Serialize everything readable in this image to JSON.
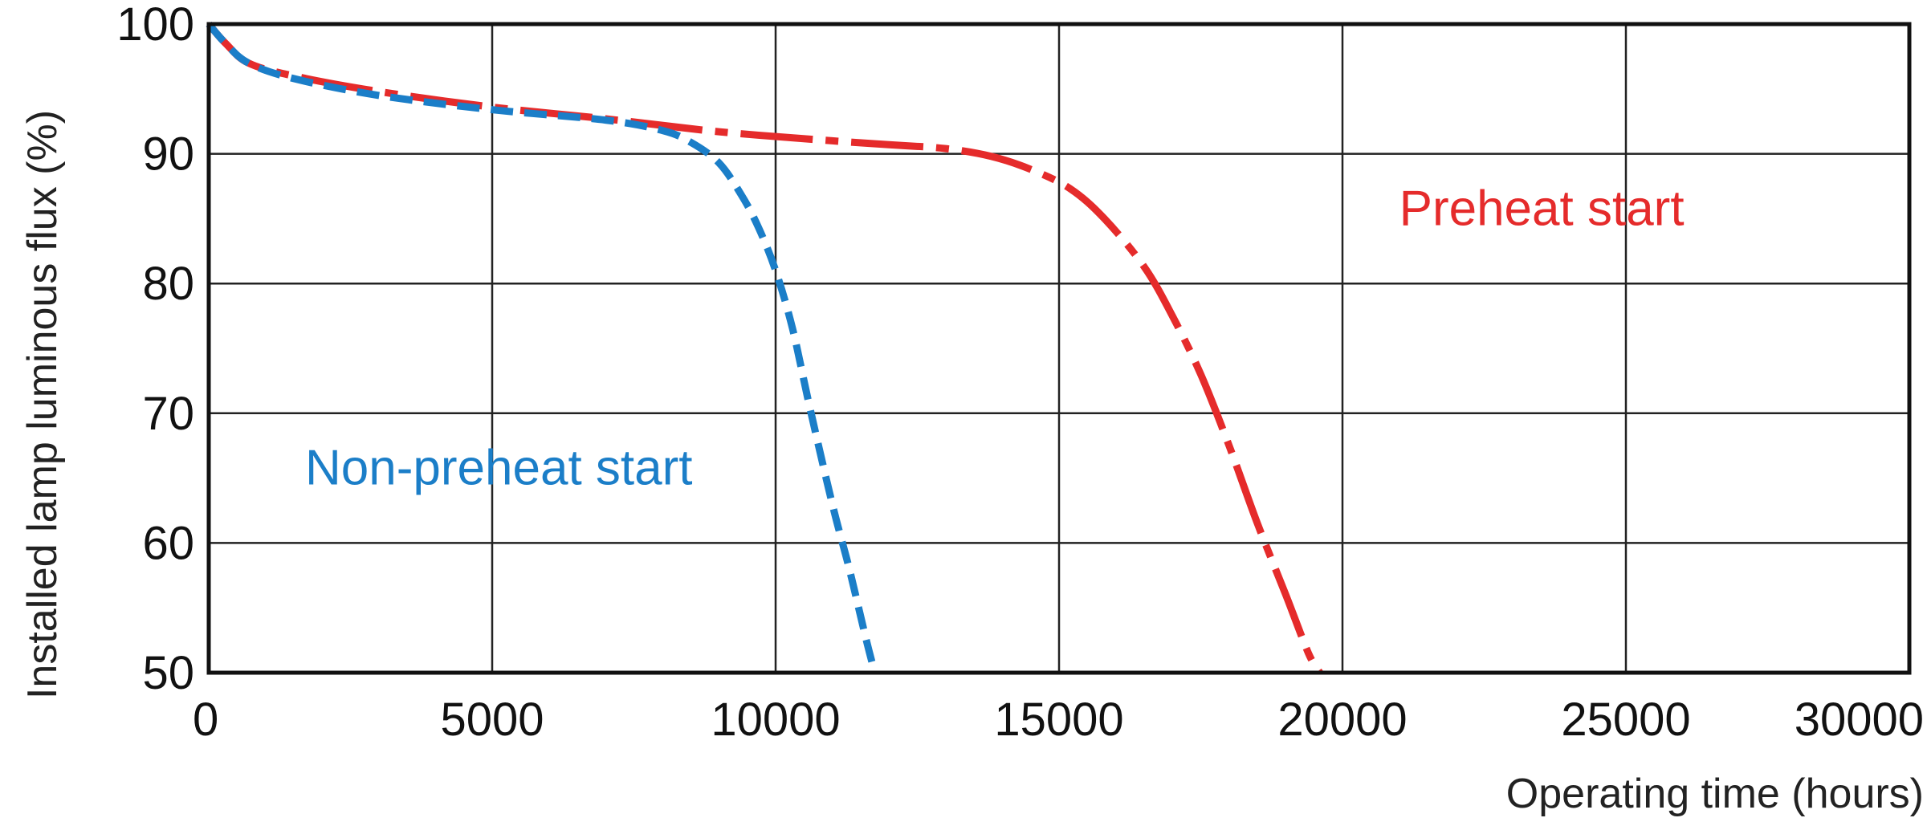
{
  "chart_data": {
    "type": "line",
    "xlabel": "Operating time (hours)",
    "ylabel": "Installed lamp luminous flux (%)",
    "xlim": [
      0,
      30000
    ],
    "ylim": [
      50,
      100
    ],
    "xticks": [
      0,
      5000,
      10000,
      15000,
      20000,
      25000,
      30000
    ],
    "yticks": [
      50,
      60,
      70,
      80,
      90,
      100
    ],
    "xtick_labels": [
      "0",
      "5000",
      "10000",
      "15000",
      "20000",
      "25000",
      "30000"
    ],
    "ytick_labels": [
      "50",
      "60",
      "70",
      "80",
      "90",
      "100"
    ],
    "grid": true,
    "series": [
      {
        "name": "Preheat start",
        "color": "#e52b2b",
        "dash": "long-dash-dot",
        "x": [
          0,
          300,
          700,
          1500,
          3000,
          5000,
          7000,
          9000,
          11000,
          12000,
          13000,
          13800,
          14500,
          15200,
          15800,
          16500,
          17000,
          17500,
          18000,
          18500,
          19000,
          19400,
          19600
        ],
        "y": [
          100,
          98.5,
          97,
          96,
          94.8,
          93.6,
          92.7,
          91.7,
          91.0,
          90.7,
          90.4,
          89.8,
          88.8,
          87.3,
          85.0,
          81.3,
          77.5,
          73.0,
          67.5,
          61.5,
          56.0,
          51.5,
          50
        ]
      },
      {
        "name": "Non-preheat start",
        "color": "#1b7ec8",
        "dash": "short-dash",
        "x": [
          0,
          300,
          700,
          1500,
          3000,
          5000,
          7000,
          8000,
          8500,
          9000,
          9400,
          9700,
          10000,
          10300,
          10600,
          11000,
          11300,
          11600,
          11750
        ],
        "y": [
          100,
          98.5,
          97,
          95.8,
          94.5,
          93.4,
          92.6,
          91.8,
          90.9,
          89.3,
          86.8,
          84.3,
          81.0,
          76.5,
          70.5,
          63.0,
          58.0,
          52.5,
          50
        ]
      }
    ],
    "annotations": [
      {
        "text": "Preheat start",
        "series": "Preheat start",
        "x": 21000,
        "y": 84.5
      },
      {
        "text": "Non-preheat start",
        "series": "Non-preheat start",
        "x": 1700,
        "y": 64.5
      }
    ]
  }
}
